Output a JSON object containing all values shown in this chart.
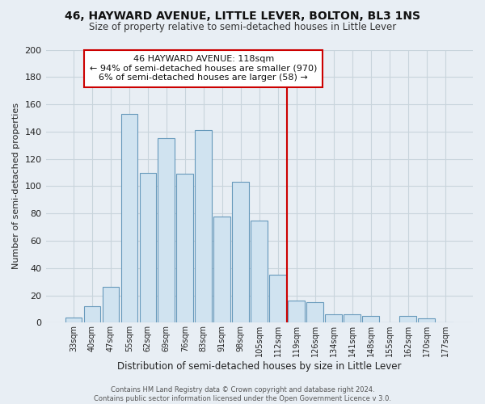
{
  "title": "46, HAYWARD AVENUE, LITTLE LEVER, BOLTON, BL3 1NS",
  "subtitle": "Size of property relative to semi-detached houses in Little Lever",
  "xlabel": "Distribution of semi-detached houses by size in Little Lever",
  "ylabel": "Number of semi-detached properties",
  "bar_labels": [
    "33sqm",
    "40sqm",
    "47sqm",
    "55sqm",
    "62sqm",
    "69sqm",
    "76sqm",
    "83sqm",
    "91sqm",
    "98sqm",
    "105sqm",
    "112sqm",
    "119sqm",
    "126sqm",
    "134sqm",
    "141sqm",
    "148sqm",
    "155sqm",
    "162sqm",
    "170sqm",
    "177sqm"
  ],
  "bar_values": [
    4,
    12,
    26,
    153,
    110,
    135,
    109,
    141,
    78,
    103,
    75,
    35,
    16,
    15,
    6,
    6,
    5,
    0,
    5,
    3,
    0
  ],
  "bar_color": "#d0e3f0",
  "bar_edge_color": "#6699bb",
  "vline_color": "#cc0000",
  "annotation_title": "46 HAYWARD AVENUE: 118sqm",
  "annotation_line1": "← 94% of semi-detached houses are smaller (970)",
  "annotation_line2": "6% of semi-detached houses are larger (58) →",
  "annotation_box_color": "#ffffff",
  "annotation_box_edge": "#cc0000",
  "ylim": [
    0,
    200
  ],
  "yticks": [
    0,
    20,
    40,
    60,
    80,
    100,
    120,
    140,
    160,
    180,
    200
  ],
  "background_color": "#e8eef4",
  "grid_color": "#c8d4dc",
  "footer1": "Contains HM Land Registry data © Crown copyright and database right 2024.",
  "footer2": "Contains public sector information licensed under the Open Government Licence v 3.0."
}
